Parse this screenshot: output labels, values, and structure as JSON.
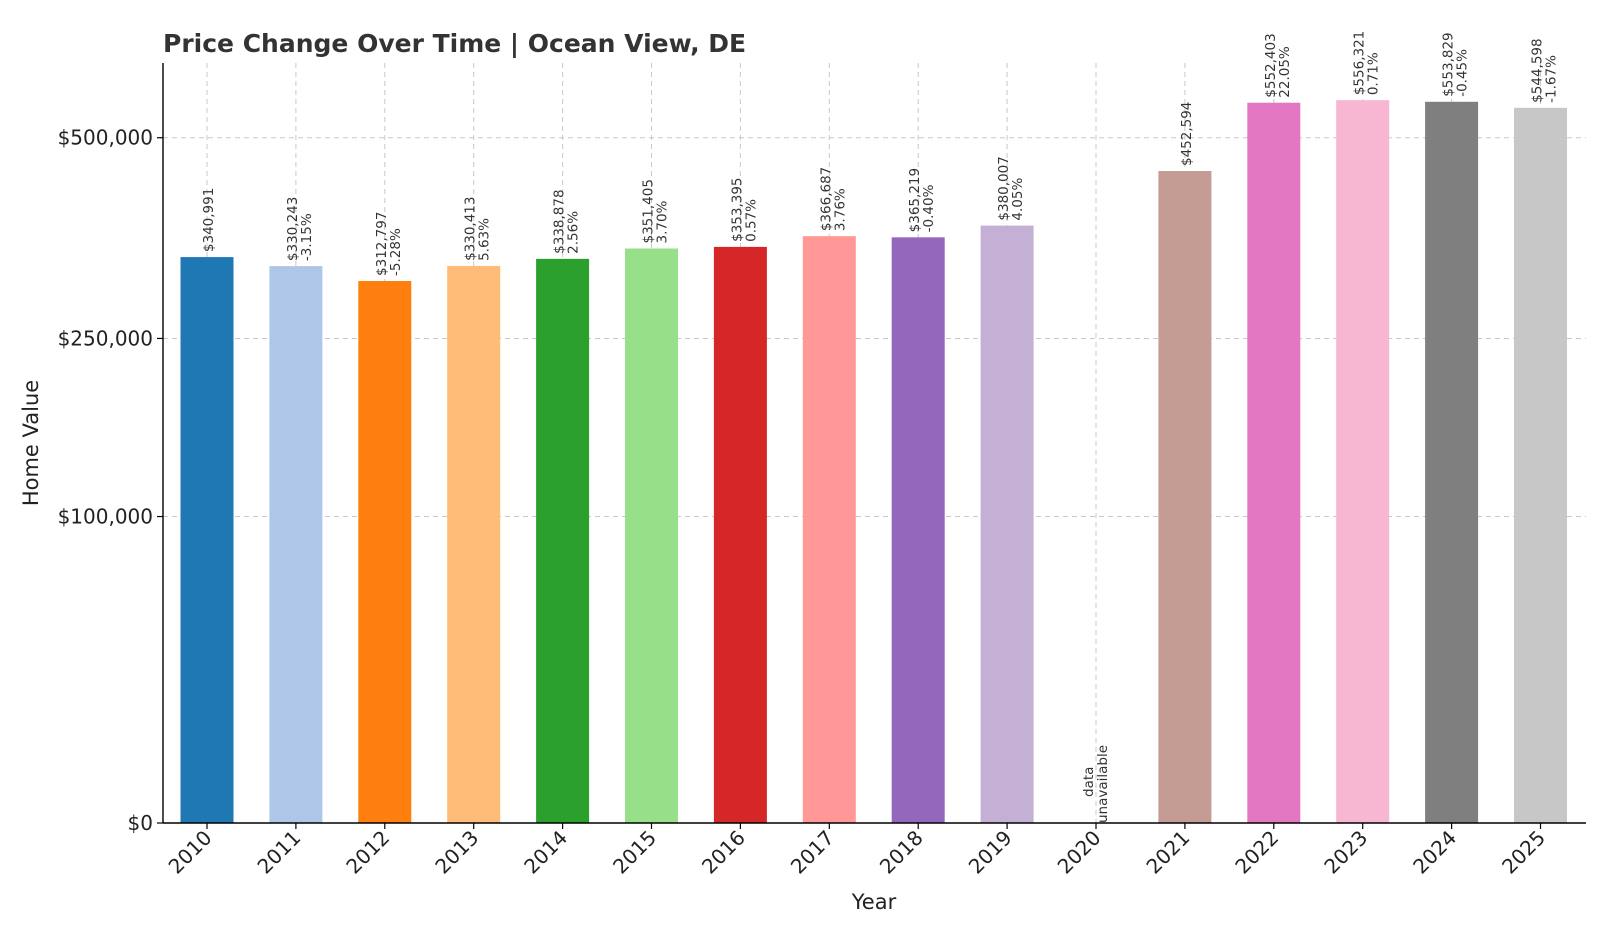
{
  "chart_data": {
    "type": "bar",
    "title": "Price Change Over Time | Ocean View, DE",
    "xlabel": "Year",
    "ylabel": "Home Value",
    "y_scale": "sqrt",
    "ylim": [
      0,
      615000
    ],
    "yticks": [
      {
        "value": 0,
        "label": "$0"
      },
      {
        "value": 100000,
        "label": "$100,000"
      },
      {
        "value": 250000,
        "label": "$250,000"
      },
      {
        "value": 500000,
        "label": "$500,000"
      }
    ],
    "grid": true,
    "categories": [
      "2010",
      "2011",
      "2012",
      "2013",
      "2014",
      "2015",
      "2016",
      "2017",
      "2018",
      "2019",
      "2020",
      "2021",
      "2022",
      "2023",
      "2024",
      "2025"
    ],
    "values": [
      340991,
      330243,
      312797,
      330413,
      338878,
      351405,
      353395,
      366687,
      365219,
      380007,
      null,
      452594,
      552403,
      556321,
      553829,
      544598
    ],
    "value_labels": [
      "$340,991",
      "$330,243",
      "$312,797",
      "$330,413",
      "$338,878",
      "$351,405",
      "$353,395",
      "$366,687",
      "$365,219",
      "$380,007",
      "",
      "$452,594",
      "$552,403",
      "$556,321",
      "$553,829",
      "$544,598"
    ],
    "change_labels": [
      "",
      "-3.15%",
      "-5.28%",
      "5.63%",
      "2.56%",
      "3.70%",
      "0.57%",
      "3.76%",
      "-0.40%",
      "4.05%",
      "",
      "",
      "22.05%",
      "0.71%",
      "-0.45%",
      "-1.67%"
    ],
    "missing_labels": [
      "",
      "",
      "",
      "",
      "",
      "",
      "",
      "",
      "",
      "",
      [
        "data",
        "unavailable"
      ],
      "",
      "",
      "",
      "",
      ""
    ],
    "colors": [
      "#1f77b4",
      "#aec7e8",
      "#ff7f0e",
      "#ffbb78",
      "#2ca02c",
      "#98df8a",
      "#d62728",
      "#ff9896",
      "#9467bd",
      "#c5b0d5",
      "#8c564b",
      "#c49c94",
      "#e377c2",
      "#f7b6d2",
      "#7f7f7f",
      "#c7c7c7"
    ]
  }
}
